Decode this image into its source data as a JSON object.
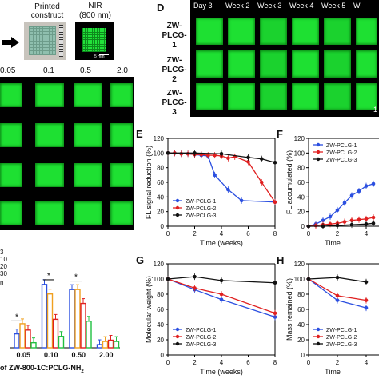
{
  "left_top": {
    "label_printed": "Printed construct",
    "label_nir": "NIR",
    "label_nir_sub": "(800 nm)",
    "scale_bar": "5 mm"
  },
  "left_grid": {
    "concentrations": [
      "0.05",
      "0.1",
      "0.5",
      "2.0"
    ]
  },
  "left_bar": {
    "legend": [
      "3",
      "10",
      "20",
      "30"
    ],
    "legend_extra": "n",
    "x_ticks": [
      "0.05",
      "0.10",
      "0.50",
      "2.00"
    ],
    "xlabel": "of ZW-800-1C:PCLG-NH",
    "xlabel_sub": "2",
    "sig": [
      "*",
      "*",
      "*"
    ]
  },
  "panel_d": {
    "letter": "D",
    "columns": [
      "Day 3",
      "Week 2",
      "Week 3",
      "Week 4",
      "Week 5",
      "W"
    ],
    "rows": [
      "ZW-\nPLCG-1",
      "ZW-\nPLCG-2",
      "ZW-\nPLCG-3"
    ],
    "rows_display": [
      [
        "ZW-",
        "PLCG-1"
      ],
      [
        "ZW-",
        "PLCG-2"
      ],
      [
        "ZW-",
        "PLCG-3"
      ]
    ],
    "corner_text": "1"
  },
  "chart_data": [
    {
      "id": "E",
      "type": "line",
      "ylabel": "FL signal reduction (%)",
      "xlabel": "Time (weeks)",
      "xlim": [
        0,
        8
      ],
      "ylim": [
        0,
        120
      ],
      "xticks": [
        0,
        2,
        4,
        6,
        8
      ],
      "yticks": [
        0,
        20,
        40,
        60,
        80,
        100,
        120
      ],
      "legend_position": "bottom-left",
      "series": [
        {
          "name": "ZW-PCLG-1",
          "color": "#2b4fe0",
          "x": [
            0,
            0.5,
            1,
            1.5,
            2,
            2.5,
            3,
            3.5,
            4.5,
            5.5,
            8
          ],
          "y": [
            100,
            100,
            99,
            99,
            98,
            97,
            96,
            70,
            50,
            35,
            33
          ]
        },
        {
          "name": "ZW-PCLG-2",
          "color": "#e02020",
          "x": [
            0,
            0.5,
            1,
            1.5,
            2,
            2.5,
            3,
            3.5,
            4,
            4.5,
            5,
            6,
            7,
            8
          ],
          "y": [
            100,
            100,
            99,
            99,
            98,
            98,
            97,
            97,
            96,
            93,
            95,
            88,
            60,
            33
          ]
        },
        {
          "name": "ZW-PCLG-3",
          "color": "#111111",
          "x": [
            0,
            2,
            4,
            6,
            7,
            8
          ],
          "y": [
            100,
            100,
            99,
            94,
            92,
            87
          ]
        }
      ]
    },
    {
      "id": "F",
      "type": "line",
      "ylabel": "FL accumulated (%)",
      "xlabel": "Time",
      "xlim": [
        0,
        5
      ],
      "ylim": [
        0,
        120
      ],
      "xticks": [
        0,
        2,
        4
      ],
      "yticks": [
        0,
        20,
        40,
        60,
        80,
        100,
        120
      ],
      "legend_position": "top-left",
      "series": [
        {
          "name": "ZW-PCLG-1",
          "color": "#2b4fe0",
          "x": [
            0,
            0.5,
            1,
            1.5,
            2,
            2.5,
            3,
            3.5,
            4,
            4.5
          ],
          "y": [
            0,
            3,
            8,
            13,
            22,
            32,
            42,
            48,
            55,
            58
          ]
        },
        {
          "name": "ZW-PCLG-2",
          "color": "#e02020",
          "x": [
            0,
            0.5,
            1,
            1.5,
            2,
            2.5,
            3,
            3.5,
            4,
            4.5
          ],
          "y": [
            0,
            1,
            2,
            3,
            4,
            6,
            8,
            9,
            10,
            12
          ]
        },
        {
          "name": "ZW-PCLG-3",
          "color": "#111111",
          "x": [
            0,
            1,
            2,
            3,
            4,
            4.5
          ],
          "y": [
            0,
            0,
            1,
            2,
            3,
            4
          ]
        }
      ]
    },
    {
      "id": "G",
      "type": "line",
      "ylabel": "Molecular weight (%)",
      "xlabel": "Time (weeks)",
      "xlim": [
        0,
        8
      ],
      "ylim": [
        0,
        120
      ],
      "xticks": [
        0,
        2,
        4,
        6,
        8
      ],
      "yticks": [
        0,
        20,
        40,
        60,
        80,
        100,
        120
      ],
      "legend_position": "bottom-left",
      "series": [
        {
          "name": "ZW-PCLG-1",
          "color": "#2b4fe0",
          "x": [
            0,
            2,
            4,
            8
          ],
          "y": [
            100,
            86,
            73,
            50
          ]
        },
        {
          "name": "ZW-PCLG-2",
          "color": "#e02020",
          "x": [
            0,
            2,
            4,
            8
          ],
          "y": [
            100,
            88,
            80,
            55
          ]
        },
        {
          "name": "ZW-PCLG-3",
          "color": "#111111",
          "x": [
            0,
            2,
            4,
            8
          ],
          "y": [
            100,
            103,
            98,
            95
          ]
        }
      ]
    },
    {
      "id": "H",
      "type": "line",
      "ylabel": "Mass remained (%)",
      "xlabel": "Time",
      "xlim": [
        0,
        5
      ],
      "ylim": [
        0,
        120
      ],
      "xticks": [
        0,
        2,
        4
      ],
      "yticks": [
        0,
        20,
        40,
        60,
        80,
        100,
        120
      ],
      "legend_position": "bottom-left",
      "series": [
        {
          "name": "ZW-PCLG-1",
          "color": "#2b4fe0",
          "x": [
            0,
            2,
            4
          ],
          "y": [
            100,
            72,
            62
          ]
        },
        {
          "name": "ZW-PCLG-2",
          "color": "#e02020",
          "x": [
            0,
            2,
            4
          ],
          "y": [
            100,
            78,
            72
          ]
        },
        {
          "name": "ZW-PCLG-3",
          "color": "#111111",
          "x": [
            0,
            2,
            4
          ],
          "y": [
            100,
            102,
            96
          ]
        }
      ]
    }
  ],
  "left_bar_chart": {
    "type": "bar",
    "categories": [
      "0.05",
      "0.10",
      "0.50",
      "2.00"
    ],
    "series_colors": [
      "#2b4fe0",
      "#f0a020",
      "#e02020",
      "#20c040"
    ],
    "series": [
      {
        "name": "3",
        "values": [
          22,
          100,
          92,
          5
        ]
      },
      {
        "name": "10",
        "values": [
          38,
          85,
          92,
          10
        ]
      },
      {
        "name": "20",
        "values": [
          28,
          45,
          70,
          12
        ]
      },
      {
        "name": "30",
        "values": [
          8,
          18,
          42,
          10
        ]
      }
    ],
    "ylim": [
      0,
      120
    ]
  },
  "colors": {
    "accent_green": "#1ee032",
    "blue": "#2b4fe0",
    "red": "#e02020",
    "black": "#111111"
  }
}
